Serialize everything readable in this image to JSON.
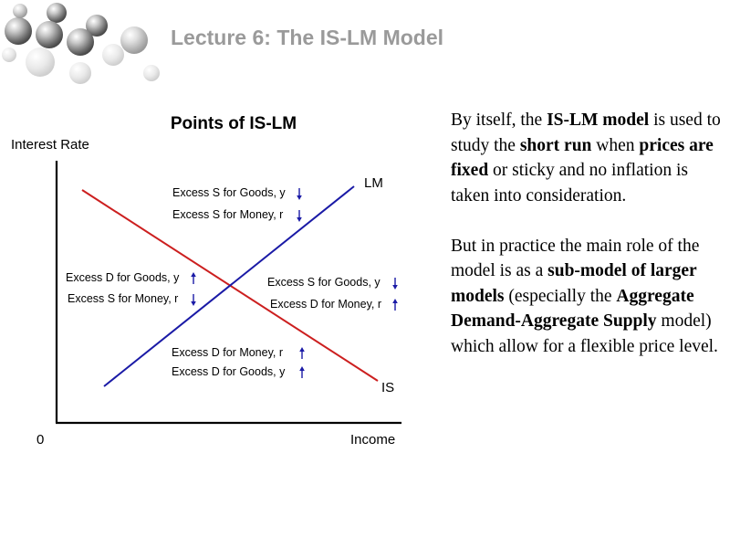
{
  "slide": {
    "title": "Lecture 6: The IS-LM Model"
  },
  "diagram": {
    "title": "Points of IS-LM",
    "y_axis_label": "Interest Rate",
    "x_axis_label": "Income",
    "origin_label": "0",
    "curves": {
      "lm": "LM",
      "is": "IS"
    },
    "regions": {
      "top": [
        "Excess S for Goods, y",
        "Excess S for Money, r"
      ],
      "left": [
        "Excess D for Goods, y",
        "Excess S for Money, r"
      ],
      "right": [
        "Excess S for Goods, y",
        "Excess D for Money, r"
      ],
      "bottom": [
        "Excess D for Money, r",
        "Excess D for Goods, y"
      ]
    },
    "colors": {
      "lm": "#1a1aa6",
      "is": "#cc1f1f",
      "axes": "#000000"
    }
  },
  "text": {
    "p1": {
      "s1": "By itself, the ",
      "b1": "IS-LM model",
      "s2": " is used to study the ",
      "b2": "short run",
      "s3": " when ",
      "b3": "prices are fixed",
      "s4": " or sticky and no inflation is taken into consideration."
    },
    "p2": {
      "s1": "But in practice the main role of the model is as a ",
      "b1": "sub-model of larger models",
      "s2": " (especially the ",
      "b2": "Aggregate Demand-Aggregate Supply",
      "s3": " model) which allow for a flexible price level."
    }
  }
}
